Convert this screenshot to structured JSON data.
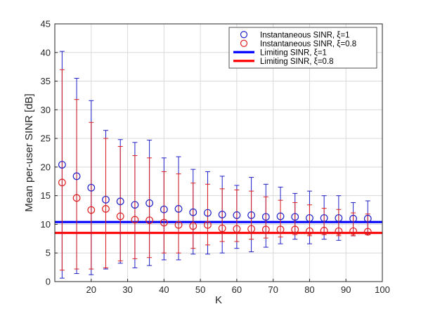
{
  "chart_data": {
    "type": "scatter",
    "title": "",
    "xlabel": "K",
    "ylabel": "Mean per-user SINR [dB]",
    "xlim": [
      10,
      100
    ],
    "ylim": [
      0,
      45
    ],
    "xticks": [
      20,
      30,
      40,
      50,
      60,
      70,
      80,
      90,
      100
    ],
    "yticks": [
      0,
      5,
      10,
      15,
      20,
      25,
      30,
      35,
      40,
      45
    ],
    "grid": true,
    "legend_position": "top-right",
    "x": [
      12,
      16,
      20,
      24,
      28,
      32,
      36,
      40,
      44,
      48,
      52,
      56,
      60,
      64,
      68,
      72,
      76,
      80,
      84,
      88,
      92,
      96
    ],
    "series": [
      {
        "name": "Instantaneous SINR, ξ=1",
        "kind": "markers-errorbars",
        "color": "#2020c8",
        "values": [
          20.4,
          18.4,
          16.4,
          14.3,
          14.0,
          13.4,
          13.7,
          12.6,
          12.7,
          12.1,
          12.0,
          11.7,
          11.6,
          11.6,
          11.3,
          11.4,
          11.3,
          11.1,
          11.1,
          11.1,
          11.0,
          11.0
        ],
        "err_low": [
          0.6,
          1.4,
          1.2,
          2.2,
          3.2,
          2.4,
          2.8,
          3.8,
          3.8,
          4.8,
          4.8,
          5.0,
          5.8,
          5.2,
          6.0,
          6.6,
          7.4,
          6.6,
          7.4,
          7.2,
          8.0,
          8.2
        ],
        "err_high": [
          40.2,
          35.5,
          31.6,
          26.4,
          24.8,
          24.3,
          24.7,
          21.6,
          21.8,
          19.6,
          19.2,
          18.4,
          16.8,
          18.2,
          17.0,
          16.5,
          15.4,
          15.8,
          15.0,
          15.0,
          13.8,
          14.1
        ]
      },
      {
        "name": "Instantaneous SINR, ξ=0.8",
        "kind": "markers-errorbars",
        "color": "#e02020",
        "values": [
          17.3,
          14.6,
          12.5,
          12.7,
          11.4,
          10.8,
          10.7,
          10.3,
          9.9,
          9.7,
          9.9,
          9.3,
          9.2,
          9.2,
          9.1,
          9.1,
          9.1,
          8.8,
          8.9,
          8.8,
          8.8,
          8.7
        ],
        "err_low": [
          2.0,
          2.2,
          2.2,
          2.4,
          3.6,
          4.0,
          4.2,
          5.0,
          5.0,
          5.8,
          6.4,
          7.0,
          7.0,
          7.4,
          7.6,
          7.8,
          8.2,
          8.0,
          8.2,
          8.0,
          8.0,
          8.2
        ],
        "err_high": [
          37.0,
          31.8,
          27.8,
          25.0,
          23.6,
          22.0,
          21.6,
          19.2,
          18.8,
          17.2,
          17.0,
          16.2,
          16.0,
          15.8,
          14.8,
          14.2,
          13.8,
          13.4,
          12.8,
          12.6,
          12.0,
          11.8
        ]
      },
      {
        "name": "Limiting SINR, ξ=1",
        "kind": "hline",
        "color": "#0000ff",
        "value": 10.4
      },
      {
        "name": "Limiting SINR, ξ=0.8",
        "kind": "hline",
        "color": "#ff0000",
        "value": 8.5
      }
    ]
  }
}
